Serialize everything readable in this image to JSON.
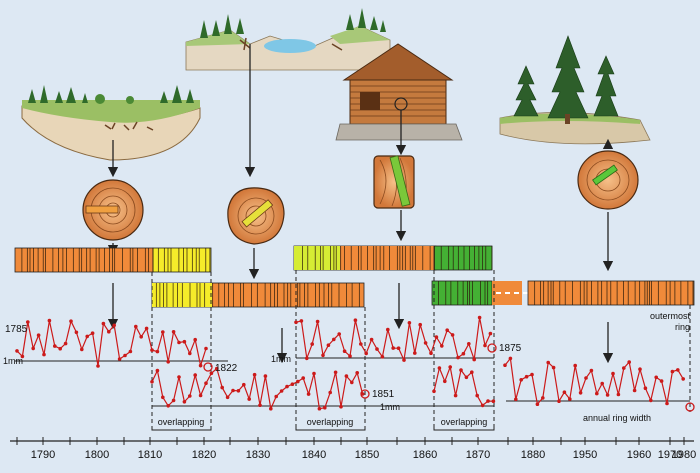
{
  "labels": {
    "start_year": "1785",
    "mm_a": "1mm",
    "mm_b": "1mm",
    "mm_c": "1mm",
    "end_1822": "1822",
    "end_1851": "1851",
    "end_1875": "1875",
    "overlapping_1": "overlapping",
    "overlapping_2": "overlapping",
    "overlapping_3": "overlapping",
    "outermost_line1": "outermost",
    "outermost_line2": "ring",
    "annual_ring_width": "annual ring width"
  },
  "axis": {
    "ticks": [
      "1790",
      "1800",
      "1810",
      "1820",
      "1830",
      "1840",
      "1850",
      "1860",
      "1870",
      "1880",
      "1950",
      "1960",
      "1970",
      "1980"
    ]
  },
  "colors": {
    "background": "#dde8f3",
    "wood_orange": "#f08a3a",
    "ring_yellow": "#f5ec2a",
    "ring_lime": "#c6e023",
    "ring_green": "#44b034",
    "series_red": "#cc1a1a",
    "arrow": "#222222"
  }
}
